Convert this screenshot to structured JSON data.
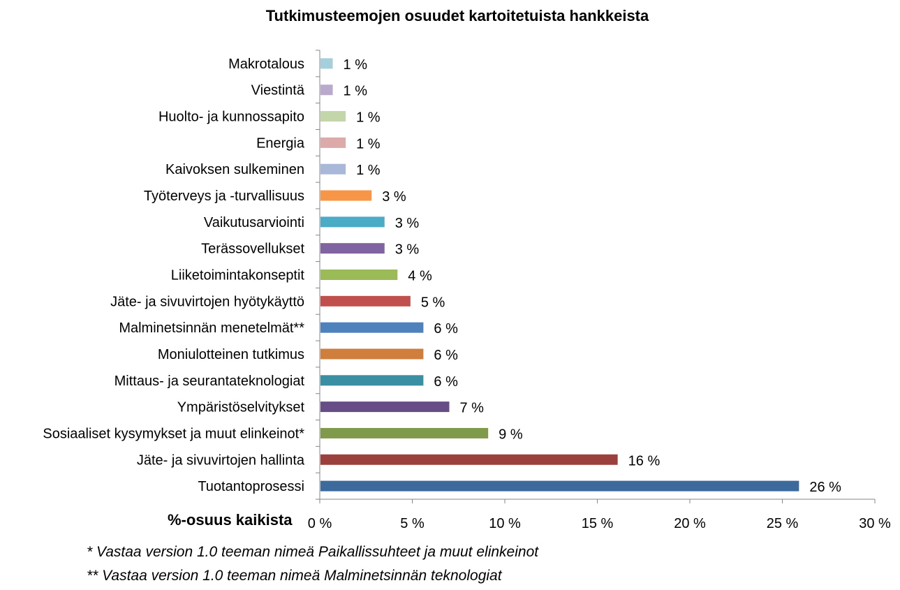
{
  "chart_data": {
    "type": "bar",
    "orientation": "horizontal",
    "title": "Tutkimusteemojen osuudet kartoitetuista hankkeista",
    "xlabel": "%-osuus kaikista",
    "ylabel": "",
    "xlim": [
      0,
      30
    ],
    "xticks": [
      "0 %",
      "5 %",
      "10 %",
      "15 %",
      "20 %",
      "25 %",
      "30 %"
    ],
    "grid": false,
    "categories": [
      "Makrotalous",
      "Viestintä",
      "Huolto- ja kunnossapito",
      "Energia",
      "Kaivoksen sulkeminen",
      "Työterveys ja -turvallisuus",
      "Vaikutusarviointi",
      "Terässovellukset",
      "Liiketoimintakonseptit",
      "Jäte- ja sivuvirtojen hyötykäyttö",
      "Malminetsinnän menetelmät**",
      "Moniulotteinen tutkimus",
      "Mittaus- ja seurantateknologiat",
      "Ympäristöselvitykset",
      "Sosiaaliset kysymykset ja muut elinkeinot*",
      "Jäte- ja sivuvirtojen hallinta",
      "Tuotantoprosessi"
    ],
    "values": [
      0.7,
      0.7,
      1.4,
      1.4,
      1.4,
      2.8,
      3.5,
      3.5,
      4.2,
      4.9,
      5.6,
      5.6,
      5.6,
      7.0,
      9.1,
      16.1,
      25.9
    ],
    "data_labels": [
      "1 %",
      "1 %",
      "1 %",
      "1 %",
      "1 %",
      "3 %",
      "3 %",
      "3 %",
      "4 %",
      "5 %",
      "6 %",
      "6 %",
      "6 %",
      "7 %",
      "9 %",
      "16 %",
      "26 %"
    ],
    "colors": [
      "#a5cfdc",
      "#b9a9cb",
      "#c2d6a9",
      "#dcaaa9",
      "#a9b8d8",
      "#f79646",
      "#4bacc6",
      "#8064a2",
      "#9bbb59",
      "#c0504d",
      "#4f81bd",
      "#d07e3c",
      "#3b8fa3",
      "#664d85",
      "#7f9a4a",
      "#9c403d",
      "#3d6a9c"
    ]
  },
  "footnotes": [
    "* Vastaa version 1.0 teeman nimeä Paikallissuhteet ja muut elinkeinot",
    "** Vastaa version 1.0 teeman nimeä Malminetsinnän teknologiat"
  ]
}
